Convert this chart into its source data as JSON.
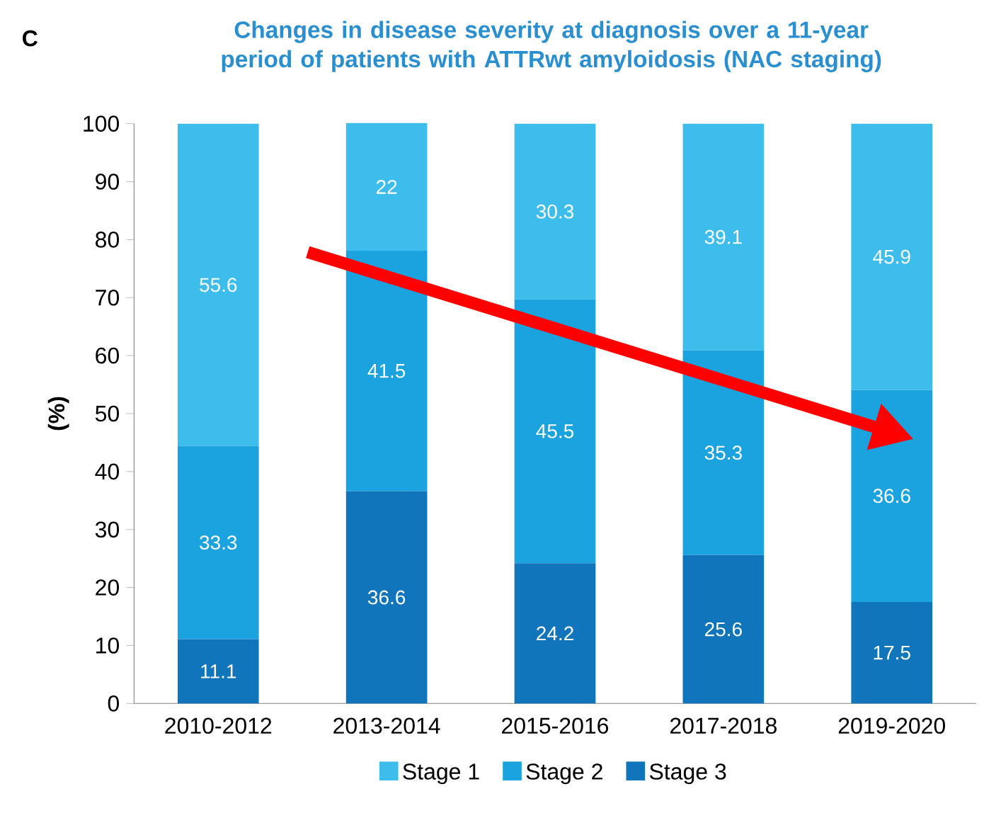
{
  "chart_data": {
    "type": "bar",
    "stacked": true,
    "title": "Changes in disease severity at diagnosis over a 11-year period of patients with ATTRwt amyloidosis (NAC staging)",
    "ylabel": "(%)",
    "annotations": [
      "C"
    ],
    "categories": [
      "2010-2012",
      "2013-2014",
      "2015-2016",
      "2017-2018",
      "2019-2020"
    ],
    "series": [
      {
        "name": "Stage 3",
        "color": "#1175bb",
        "values": [
          11.1,
          36.6,
          24.2,
          25.6,
          17.5
        ]
      },
      {
        "name": "Stage 2",
        "color": "#1aa3df",
        "values": [
          33.3,
          41.5,
          45.5,
          35.3,
          36.6
        ]
      },
      {
        "name": "Stage 1",
        "color": "#3dbdeb",
        "values": [
          55.6,
          22,
          30.3,
          39.1,
          45.9
        ]
      }
    ],
    "ylim": [
      0,
      100
    ],
    "yticks": [
      0,
      10,
      20,
      30,
      40,
      50,
      60,
      70,
      80,
      90,
      100
    ],
    "data_labels": true,
    "legend": "bottom",
    "grid": false
  }
}
